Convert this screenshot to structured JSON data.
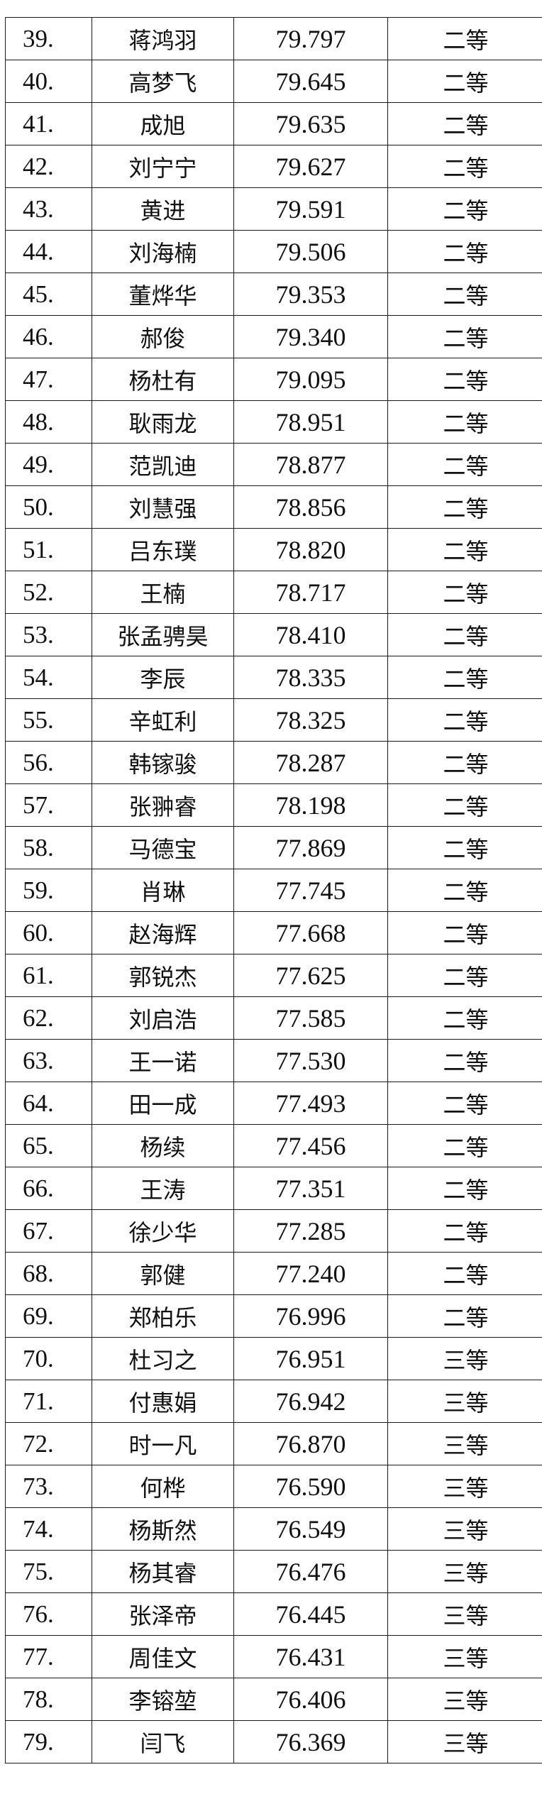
{
  "rows": [
    {
      "rank": "39.",
      "name": "蒋鸿羽",
      "score": "79.797",
      "grade": "二等"
    },
    {
      "rank": "40.",
      "name": "高梦飞",
      "score": "79.645",
      "grade": "二等"
    },
    {
      "rank": "41.",
      "name": "成旭",
      "score": "79.635",
      "grade": "二等"
    },
    {
      "rank": "42.",
      "name": "刘宁宁",
      "score": "79.627",
      "grade": "二等"
    },
    {
      "rank": "43.",
      "name": "黄进",
      "score": "79.591",
      "grade": "二等"
    },
    {
      "rank": "44.",
      "name": "刘海楠",
      "score": "79.506",
      "grade": "二等"
    },
    {
      "rank": "45.",
      "name": "董烨华",
      "score": "79.353",
      "grade": "二等"
    },
    {
      "rank": "46.",
      "name": "郝俊",
      "score": "79.340",
      "grade": "二等"
    },
    {
      "rank": "47.",
      "name": "杨杜有",
      "score": "79.095",
      "grade": "二等"
    },
    {
      "rank": "48.",
      "name": "耿雨龙",
      "score": "78.951",
      "grade": "二等"
    },
    {
      "rank": "49.",
      "name": "范凯迪",
      "score": "78.877",
      "grade": "二等"
    },
    {
      "rank": "50.",
      "name": "刘慧强",
      "score": "78.856",
      "grade": "二等"
    },
    {
      "rank": "51.",
      "name": "吕东璞",
      "score": "78.820",
      "grade": "二等"
    },
    {
      "rank": "52.",
      "name": "王楠",
      "score": "78.717",
      "grade": "二等"
    },
    {
      "rank": "53.",
      "name": "张孟骋昊",
      "score": "78.410",
      "grade": "二等"
    },
    {
      "rank": "54.",
      "name": "李辰",
      "score": "78.335",
      "grade": "二等"
    },
    {
      "rank": "55.",
      "name": "辛虹利",
      "score": "78.325",
      "grade": "二等"
    },
    {
      "rank": "56.",
      "name": "韩镓骏",
      "score": "78.287",
      "grade": "二等"
    },
    {
      "rank": "57.",
      "name": "张翀睿",
      "score": "78.198",
      "grade": "二等"
    },
    {
      "rank": "58.",
      "name": "马德宝",
      "score": "77.869",
      "grade": "二等"
    },
    {
      "rank": "59.",
      "name": "肖琳",
      "score": "77.745",
      "grade": "二等"
    },
    {
      "rank": "60.",
      "name": "赵海辉",
      "score": "77.668",
      "grade": "二等"
    },
    {
      "rank": "61.",
      "name": "郭锐杰",
      "score": "77.625",
      "grade": "二等"
    },
    {
      "rank": "62.",
      "name": "刘启浩",
      "score": "77.585",
      "grade": "二等"
    },
    {
      "rank": "63.",
      "name": "王一诺",
      "score": "77.530",
      "grade": "二等"
    },
    {
      "rank": "64.",
      "name": "田一成",
      "score": "77.493",
      "grade": "二等"
    },
    {
      "rank": "65.",
      "name": "杨续",
      "score": "77.456",
      "grade": "二等"
    },
    {
      "rank": "66.",
      "name": "王涛",
      "score": "77.351",
      "grade": "二等"
    },
    {
      "rank": "67.",
      "name": "徐少华",
      "score": "77.285",
      "grade": "二等"
    },
    {
      "rank": "68.",
      "name": "郭健",
      "score": "77.240",
      "grade": "二等"
    },
    {
      "rank": "69.",
      "name": "郑柏乐",
      "score": "76.996",
      "grade": "二等"
    },
    {
      "rank": "70.",
      "name": "杜习之",
      "score": "76.951",
      "grade": "三等"
    },
    {
      "rank": "71.",
      "name": "付惠娟",
      "score": "76.942",
      "grade": "三等"
    },
    {
      "rank": "72.",
      "name": "时一凡",
      "score": "76.870",
      "grade": "三等"
    },
    {
      "rank": "73.",
      "name": "何桦",
      "score": "76.590",
      "grade": "三等"
    },
    {
      "rank": "74.",
      "name": "杨斯然",
      "score": "76.549",
      "grade": "三等"
    },
    {
      "rank": "75.",
      "name": "杨其睿",
      "score": "76.476",
      "grade": "三等"
    },
    {
      "rank": "76.",
      "name": "张泽帝",
      "score": "76.445",
      "grade": "三等"
    },
    {
      "rank": "77.",
      "name": "周佳文",
      "score": "76.431",
      "grade": "三等"
    },
    {
      "rank": "78.",
      "name": "李镕堃",
      "score": "76.406",
      "grade": "三等"
    },
    {
      "rank": "79.",
      "name": "闫飞",
      "score": "76.369",
      "grade": "三等"
    }
  ]
}
